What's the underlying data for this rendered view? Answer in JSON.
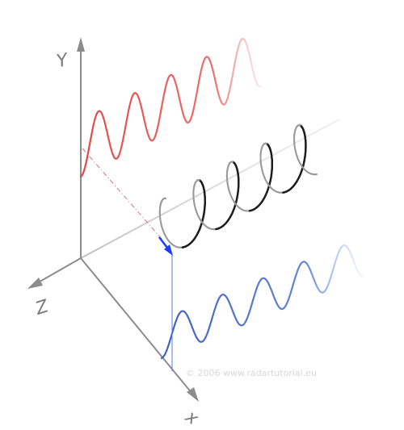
{
  "axes": {
    "y_label": "Y",
    "z_label": "Z",
    "x_label": "x"
  },
  "copyright": "© 2006  www.radartutorial.eu",
  "colors": {
    "axis": "#8c8c8c",
    "red_wave": "#e05a5a",
    "helix": "#222222",
    "blue_wave": "#4466c8",
    "vector": "#1f3cff"
  }
}
